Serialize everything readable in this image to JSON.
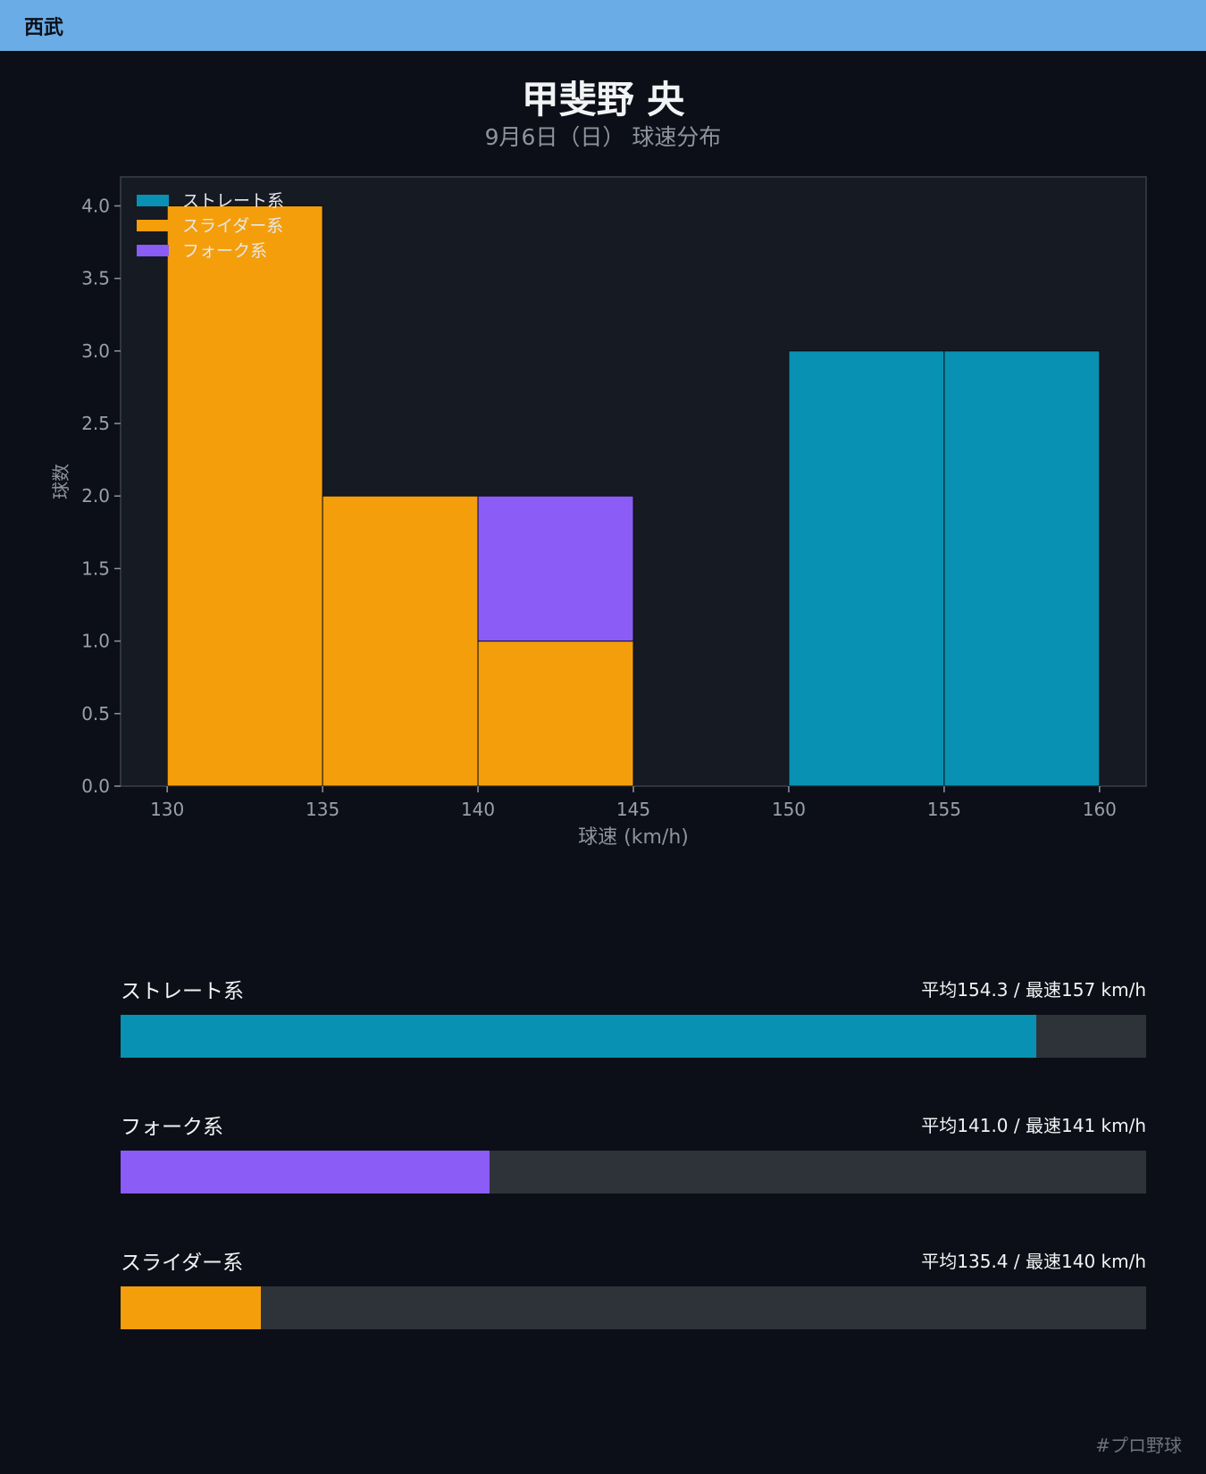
{
  "header": {
    "team": "西武",
    "bar_color": "#6aace6"
  },
  "title": "甲斐野 央",
  "subtitle": "9月6日（日） 球速分布",
  "chart_data": {
    "type": "bar",
    "stacked": true,
    "bin_edges": [
      130,
      135,
      140,
      145,
      150,
      155,
      160
    ],
    "x_ticks": [
      130,
      135,
      140,
      145,
      150,
      155,
      160
    ],
    "y_ticks": [
      0.0,
      0.5,
      1.0,
      1.5,
      2.0,
      2.5,
      3.0,
      3.5,
      4.0
    ],
    "xlim": [
      128.5,
      161.5
    ],
    "ylim": [
      0,
      4.2
    ],
    "xlabel": "球速 (km/h)",
    "ylabel": "球数",
    "legend_position": "top-left",
    "grid": false,
    "series": [
      {
        "name": "ストレート系",
        "color": "#0891b2",
        "values": [
          0,
          0,
          0,
          0,
          3,
          3
        ]
      },
      {
        "name": "スライダー系",
        "color": "#f59e0b",
        "values": [
          4,
          2,
          1,
          0,
          0,
          0
        ]
      },
      {
        "name": "フォーク系",
        "color": "#8b5cf6",
        "values": [
          0,
          0,
          1,
          0,
          0,
          0
        ]
      }
    ],
    "stack_order": [
      "スライダー系",
      "フォーク系",
      "ストレート系"
    ]
  },
  "stats": [
    {
      "name": "ストレート系",
      "values": "平均154.3 / 最速157 km/h",
      "fill": 0.893,
      "color": "#0891b2"
    },
    {
      "name": "フォーク系",
      "values": "平均141.0 / 最速141 km/h",
      "fill": 0.36,
      "color": "#8b5cf6"
    },
    {
      "name": "スライダー系",
      "values": "平均135.4 / 最速140 km/h",
      "fill": 0.137,
      "color": "#f59e0b"
    }
  ],
  "footer": "#プロ野球"
}
